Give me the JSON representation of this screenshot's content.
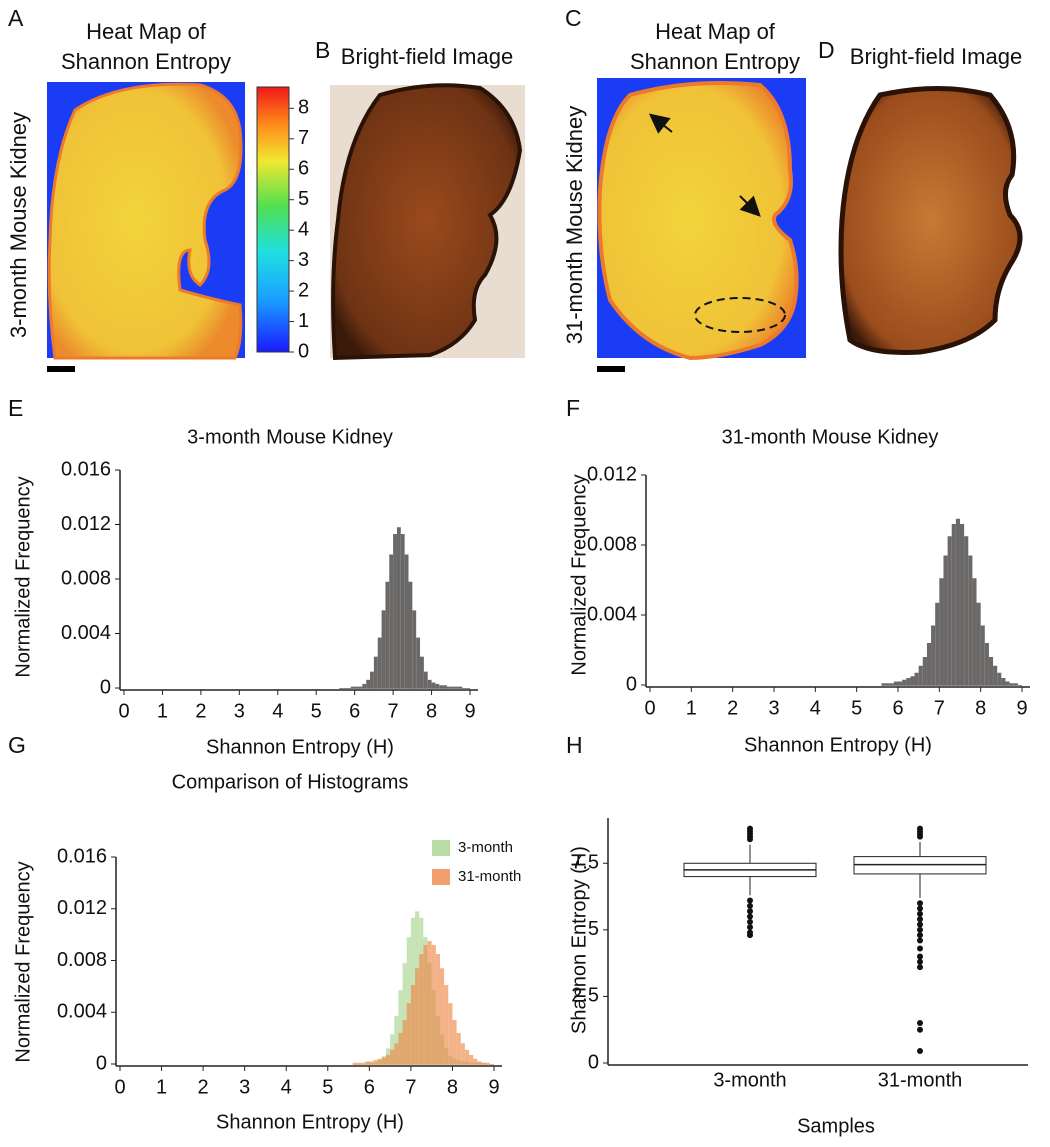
{
  "image_panels": [
    {
      "panel": "A",
      "title_lines": [
        "Heat Map of",
        "Shannon Entropy"
      ],
      "ylabel": "3-month Mouse Kidney",
      "colorbar": {
        "ylim": [
          0,
          8.7
        ],
        "yticks": [
          0,
          1,
          2,
          3,
          4,
          5,
          6,
          7,
          8
        ]
      }
    },
    {
      "panel": "B",
      "title": "Bright-field Image"
    },
    {
      "panel": "C",
      "title_lines": [
        "Heat Map of",
        "Shannon Entropy"
      ],
      "ylabel": "31-month Mouse Kidney"
    },
    {
      "panel": "D",
      "title": "Bright-field Image"
    }
  ],
  "chart_data": [
    {
      "type": "histogram",
      "panel": "E",
      "title": "3-month Mouse Kidney",
      "xlabel": "Shannon Entropy (H)",
      "ylabel": "Normalized Frequency",
      "color": "#6b6868",
      "bins": [
        5.6,
        5.7,
        5.8,
        5.9,
        6,
        6.1,
        6.2,
        6.3,
        6.4,
        6.5,
        6.6,
        6.7,
        6.8,
        6.9,
        7,
        7.1,
        7.2,
        7.3,
        7.4,
        7.5,
        7.6,
        7.7,
        7.8,
        7.9,
        8,
        8.1,
        8.2,
        8.3,
        8.4,
        8.5,
        8.6,
        8.7,
        8.8,
        8.9,
        9
      ],
      "values": [
        0,
        0,
        0,
        0.0001,
        0.0001,
        0.0001,
        0.0003,
        0.0006,
        0.0012,
        0.0023,
        0.0037,
        0.0057,
        0.0078,
        0.0098,
        0.0113,
        0.0118,
        0.0113,
        0.0098,
        0.0078,
        0.0057,
        0.0037,
        0.0023,
        0.0012,
        0.0006,
        0.0004,
        0.0003,
        0.0002,
        0.0002,
        0.0001,
        0.0001,
        0.0001,
        0.0001,
        0,
        0
      ],
      "xlim": [
        0,
        9
      ],
      "xticks": [
        0,
        1,
        2,
        3,
        4,
        5,
        6,
        7,
        8,
        9
      ],
      "ylim": [
        0,
        0.016
      ],
      "yticks": [
        0,
        0.004,
        0.008,
        0.012,
        0.016
      ]
    },
    {
      "type": "histogram",
      "panel": "F",
      "title": "31-month Mouse Kidney",
      "xlabel": "Shannon Entropy (H)",
      "ylabel": "Normalized Frequency",
      "color": "#6b6868",
      "bins": [
        5.6,
        5.7,
        5.8,
        5.9,
        6,
        6.1,
        6.2,
        6.3,
        6.4,
        6.5,
        6.6,
        6.7,
        6.8,
        6.9,
        7,
        7.1,
        7.2,
        7.3,
        7.4,
        7.5,
        7.6,
        7.7,
        7.8,
        7.9,
        8,
        8.1,
        8.2,
        8.3,
        8.4,
        8.5,
        8.6,
        8.7,
        8.8,
        8.9,
        9
      ],
      "values": [
        0.0001,
        0.0001,
        0.0001,
        0.0002,
        0.0002,
        0.0003,
        0.0004,
        0.0005,
        0.0007,
        0.0011,
        0.0016,
        0.0024,
        0.0034,
        0.0047,
        0.0061,
        0.0074,
        0.0085,
        0.0092,
        0.0095,
        0.0092,
        0.0085,
        0.0074,
        0.0061,
        0.0047,
        0.0034,
        0.0024,
        0.0016,
        0.0011,
        0.0007,
        0.0004,
        0.0002,
        0.0001,
        0.0001,
        0
      ],
      "xlim": [
        0,
        9
      ],
      "xticks": [
        0,
        1,
        2,
        3,
        4,
        5,
        6,
        7,
        8,
        9
      ],
      "ylim": [
        0,
        0.012
      ],
      "yticks": [
        0,
        0.004,
        0.008,
        0.012
      ]
    },
    {
      "type": "histogram",
      "panel": "G",
      "title": "Comparison of Histograms",
      "xlabel": "Shannon Entropy (H)",
      "ylabel": "Normalized Frequency",
      "bins": [
        5.6,
        5.7,
        5.8,
        5.9,
        6,
        6.1,
        6.2,
        6.3,
        6.4,
        6.5,
        6.6,
        6.7,
        6.8,
        6.9,
        7,
        7.1,
        7.2,
        7.3,
        7.4,
        7.5,
        7.6,
        7.7,
        7.8,
        7.9,
        8,
        8.1,
        8.2,
        8.3,
        8.4,
        8.5,
        8.6,
        8.7,
        8.8,
        8.9,
        9
      ],
      "series": [
        {
          "name": "3-month",
          "color": "#a6d48e",
          "values": [
            0,
            0,
            0,
            0.0001,
            0.0001,
            0.0001,
            0.0003,
            0.0006,
            0.0012,
            0.0023,
            0.0037,
            0.0057,
            0.0078,
            0.0098,
            0.0113,
            0.0118,
            0.0113,
            0.0098,
            0.0078,
            0.0057,
            0.0037,
            0.0023,
            0.0012,
            0.0006,
            0.0004,
            0.0003,
            0.0002,
            0.0002,
            0.0001,
            0.0001,
            0.0001,
            0.0001,
            0,
            0
          ]
        },
        {
          "name": "31-month",
          "color": "#ee8848",
          "values": [
            0.0001,
            0.0001,
            0.0001,
            0.0002,
            0.0002,
            0.0003,
            0.0004,
            0.0005,
            0.0007,
            0.0011,
            0.0016,
            0.0024,
            0.0034,
            0.0047,
            0.0061,
            0.0074,
            0.0085,
            0.0092,
            0.0095,
            0.0092,
            0.0085,
            0.0074,
            0.0061,
            0.0047,
            0.0034,
            0.0024,
            0.0016,
            0.0011,
            0.0007,
            0.0004,
            0.0002,
            0.0001,
            0.0001,
            0
          ]
        }
      ],
      "legend": "upper right",
      "xlim": [
        0,
        9
      ],
      "xticks": [
        0,
        1,
        2,
        3,
        4,
        5,
        6,
        7,
        8,
        9
      ],
      "ylim": [
        0,
        0.016
      ],
      "yticks": [
        0,
        0.004,
        0.008,
        0.012,
        0.016
      ]
    },
    {
      "type": "box",
      "panel": "H",
      "xlabel": "Samples",
      "ylabel": "Shannon Entropy (H)",
      "boxes": [
        {
          "name": "3-month",
          "whisker_low": 6.3,
          "q1": 7.0,
          "median": 7.25,
          "q3": 7.5,
          "whisker_high": 8.2,
          "outliers": [
            8.4,
            8.5,
            8.6,
            8.7,
            8.8,
            6.1,
            5.9,
            5.7,
            5.5,
            5.3,
            5.1,
            4.9,
            4.8
          ]
        },
        {
          "name": "31-month",
          "whisker_low": 6.2,
          "q1": 7.1,
          "median": 7.45,
          "q3": 7.75,
          "whisker_high": 8.3,
          "outliers": [
            8.5,
            8.6,
            8.7,
            8.8,
            6.0,
            5.8,
            5.6,
            5.4,
            5.2,
            5.0,
            4.8,
            4.6,
            4.3,
            4.0,
            3.8,
            3.6,
            1.5,
            1.25,
            0.45
          ]
        }
      ],
      "ylim": [
        0,
        9.2
      ],
      "yticks": [
        0,
        2.5,
        5,
        7.5
      ]
    }
  ]
}
